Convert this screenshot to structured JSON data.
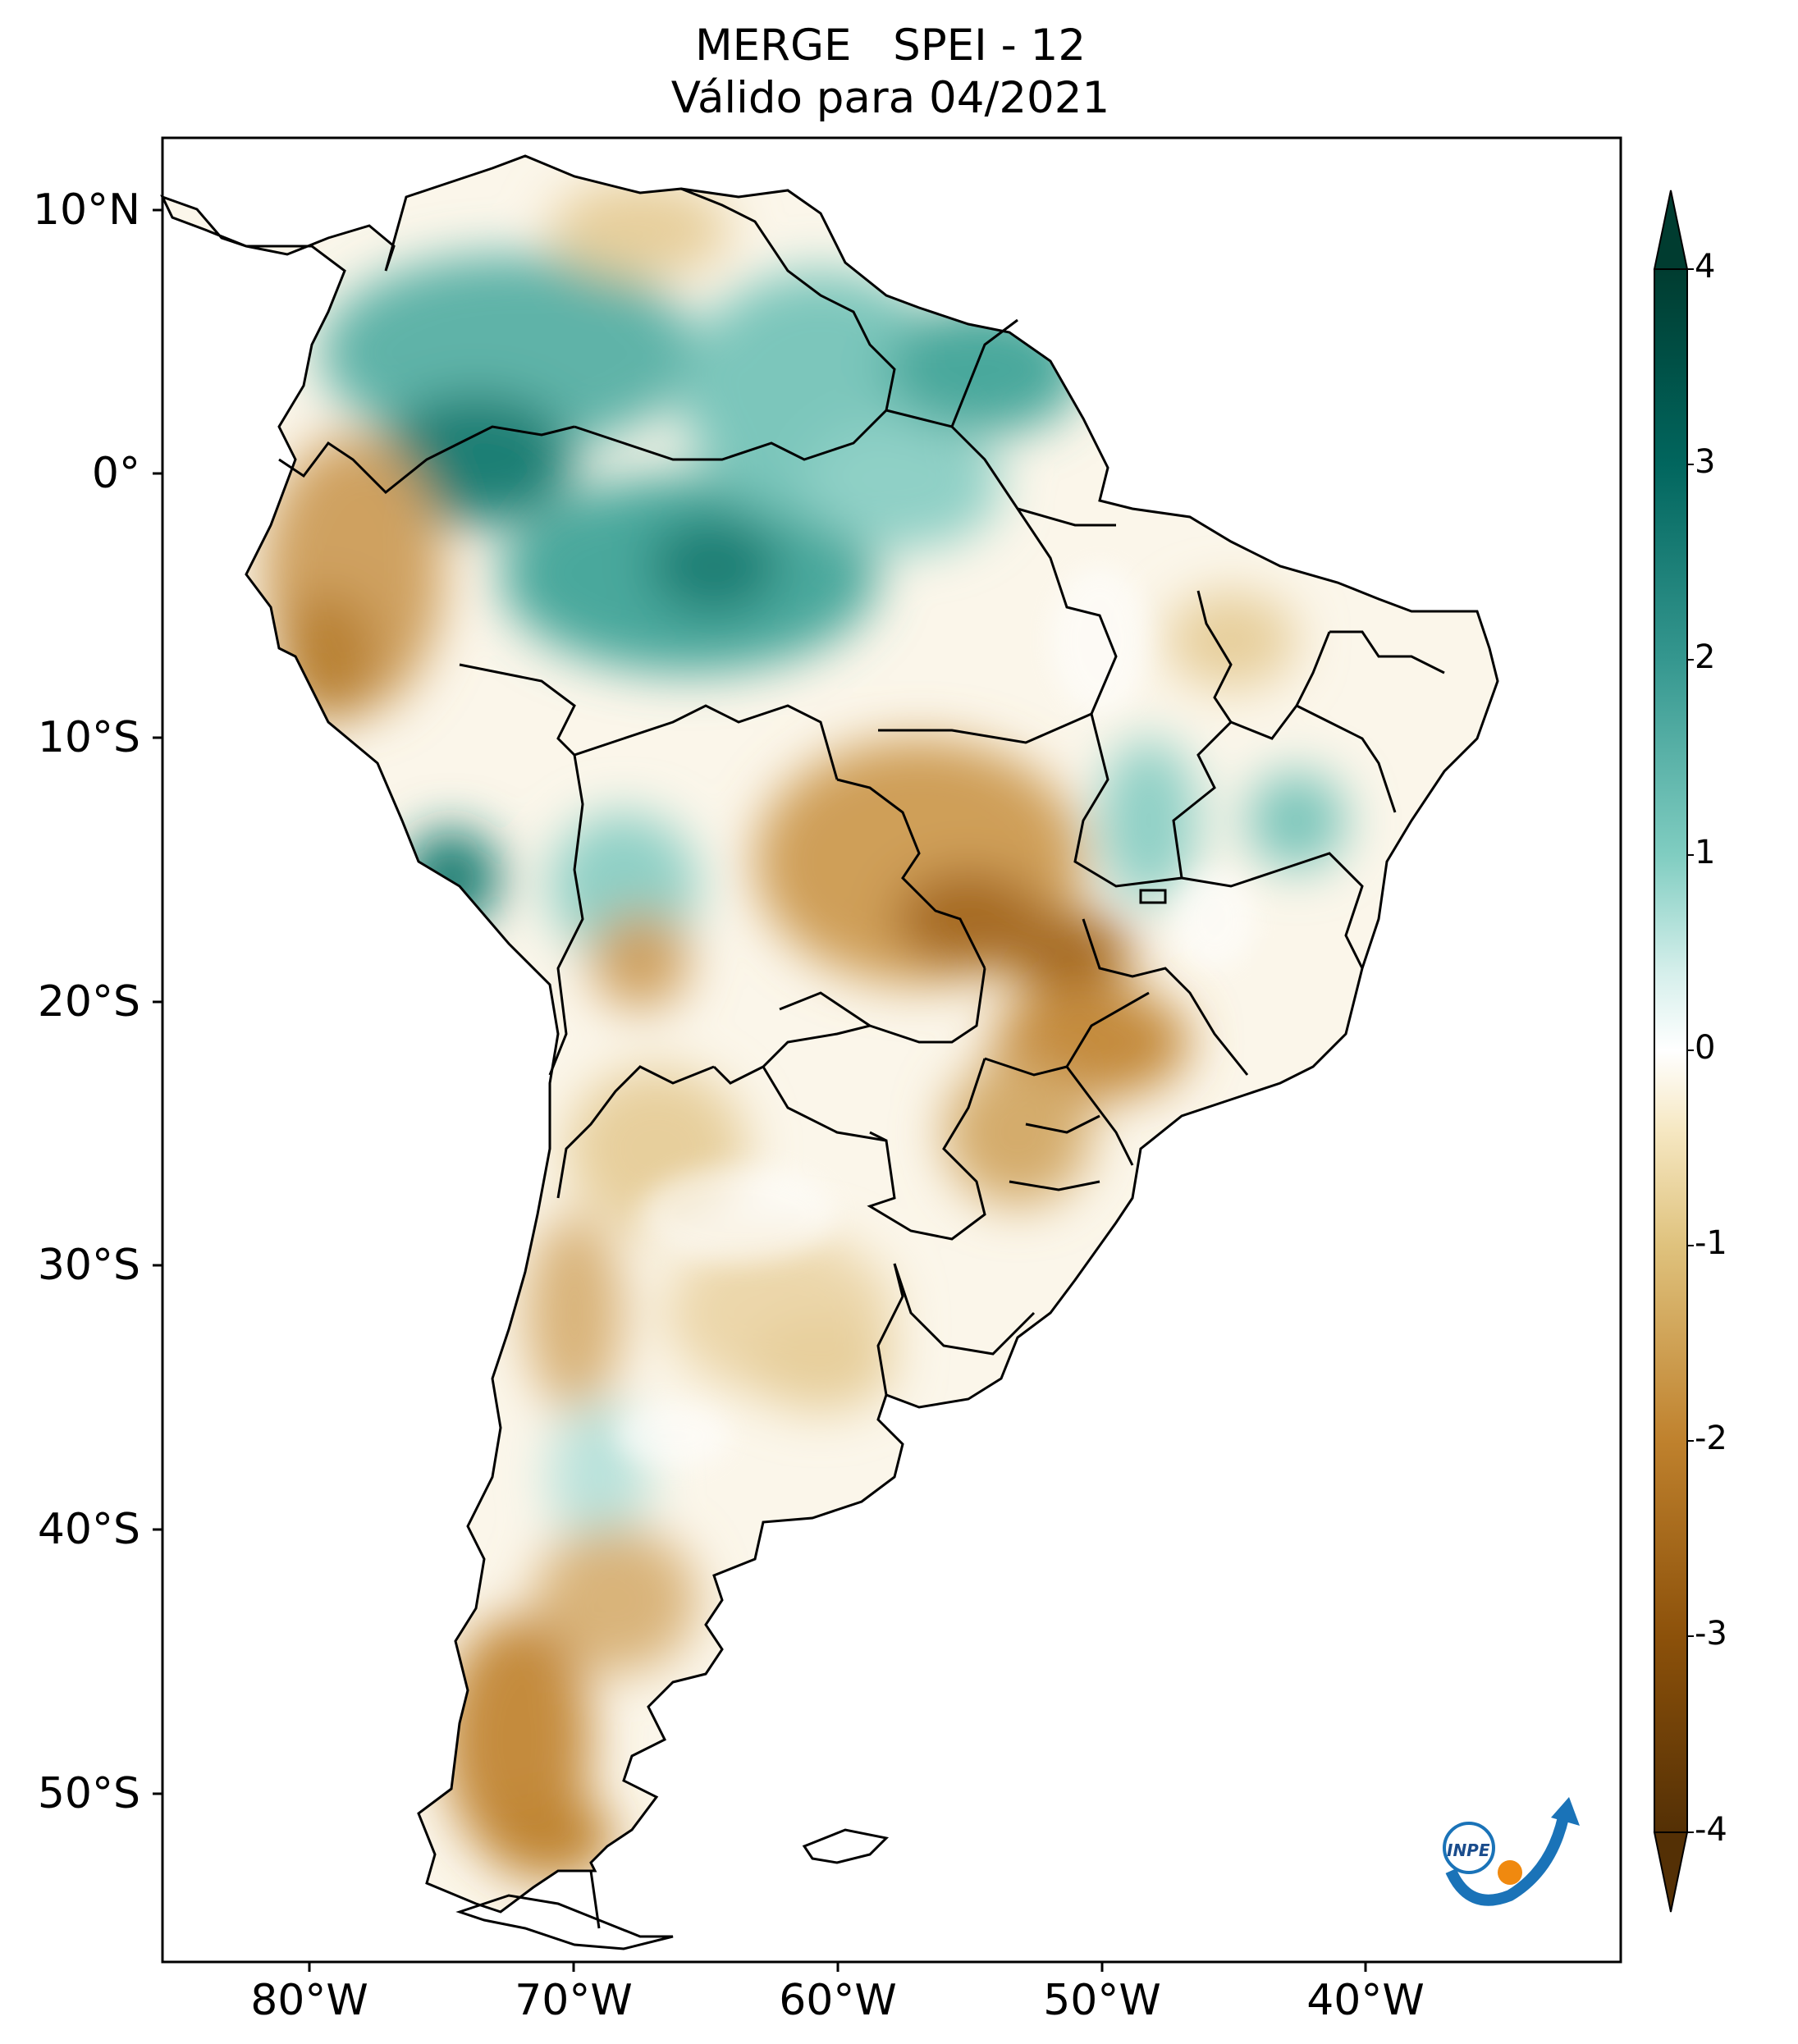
{
  "title_line1": "MERGE   SPEI - 12",
  "title_line2": "Válido para 04/2021",
  "lat_labels": [
    "10°N",
    "0°",
    "10°S",
    "20°S",
    "30°S",
    "40°S",
    "50°S"
  ],
  "lon_labels": [
    "80°W",
    "70°W",
    "60°W",
    "50°W",
    "40°W"
  ],
  "colorbar": {
    "ticks": [
      "4",
      "3",
      "2",
      "1",
      "0",
      "-1",
      "-2",
      "-3",
      "-4"
    ],
    "min": -4,
    "max": 4,
    "colors": {
      "wet_extreme": "#003c30",
      "wet": "#35978f",
      "wet_light": "#c7eae5",
      "neutral": "#ffffff",
      "dry_light": "#f6e8c3",
      "dry": "#bf812d",
      "dry_extreme": "#543005"
    }
  },
  "logo": {
    "text": "INPE"
  }
}
